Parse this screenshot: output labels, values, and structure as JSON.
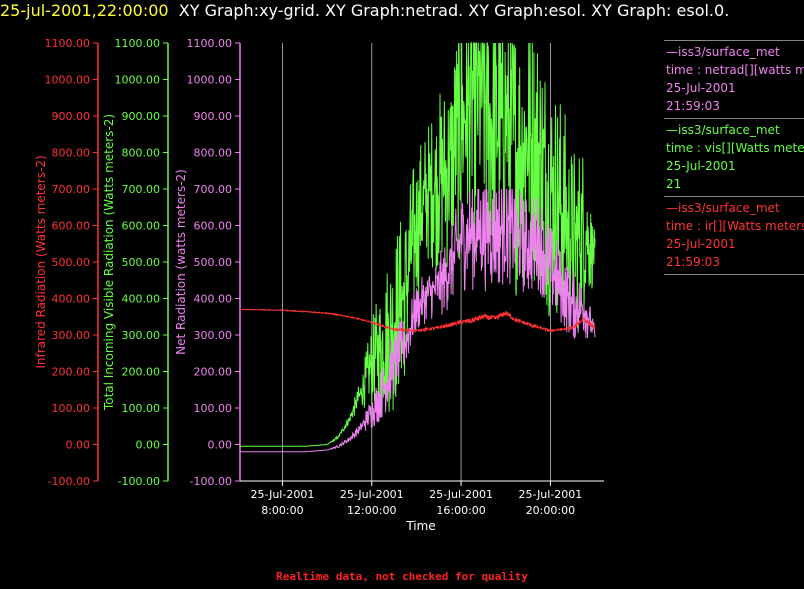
{
  "title": {
    "date": "25-jul-2001,22:00:00",
    "text": "XY Graph:xy-grid.  XY Graph:netrad.  XY Graph:esol.  XY Graph: esol.0."
  },
  "footer_note": "Realtime data, not checked for quality",
  "legend": [
    {
      "source": "—iss3/surface_met",
      "var": "time : netrad[][watts meters-2]",
      "date": "25-Jul-2001",
      "time": "21:59:03",
      "color": "#ee82ee"
    },
    {
      "source": "—iss3/surface_met",
      "var": "time : vis[][Watts meters-2]",
      "date": "25-Jul-2001",
      "time": "21",
      "color": "#66ff44"
    },
    {
      "source": "—iss3/surface_met",
      "var": "time : ir[][Watts meters-2]",
      "date": "25-Jul-2001",
      "time": "21:59:03",
      "color": "#ff3333"
    }
  ],
  "chart_data": {
    "type": "line",
    "xlabel": "Time",
    "x_ticks": [
      {
        "date": "25-Jul-2001",
        "time": "8:00:00",
        "hour": 8
      },
      {
        "date": "25-Jul-2001",
        "time": "12:00:00",
        "hour": 12
      },
      {
        "date": "25-Jul-2001",
        "time": "16:00:00",
        "hour": 16
      },
      {
        "date": "25-Jul-2001",
        "time": "20:00:00",
        "hour": 20
      }
    ],
    "xlim_hours": [
      6.1,
      22.4
    ],
    "grid": "vertical",
    "y_ticks": [
      "-100.00",
      "0.00",
      "100.00",
      "200.00",
      "300.00",
      "400.00",
      "500.00",
      "600.00",
      "700.00",
      "800.00",
      "900.00",
      "1000.00",
      "1100.00"
    ],
    "axes": [
      {
        "label": "Infrared Radiation (Watts meters-2)",
        "color": "#ff3333",
        "ylim": [
          -100,
          1100
        ]
      },
      {
        "label": "Total Incoming Visible Radiation (Watts meters-2)",
        "color": "#66ff44",
        "ylim": [
          -100,
          1100
        ]
      },
      {
        "label": "Net Radiation (watts meters-2)",
        "color": "#ee82ee",
        "ylim": [
          -100,
          1100
        ]
      }
    ],
    "series": [
      {
        "name": "vis",
        "color": "#66ff44",
        "style": "noisy",
        "x": [
          6.1,
          9.0,
          10.0,
          10.5,
          11.0,
          11.5,
          12.0,
          12.5,
          13.0,
          13.5,
          14.0,
          14.5,
          15.0,
          15.5,
          16.0,
          16.5,
          17.0,
          17.5,
          18.0,
          18.5,
          19.0,
          19.5,
          20.0,
          20.5,
          21.0,
          21.5,
          22.0
        ],
        "y": [
          -5,
          -5,
          0,
          20,
          70,
          140,
          220,
          280,
          340,
          420,
          600,
          690,
          720,
          760,
          880,
          950,
          960,
          860,
          900,
          800,
          850,
          800,
          700,
          650,
          550,
          600,
          510
        ],
        "noise": [
          0,
          0,
          0,
          5,
          15,
          40,
          120,
          200,
          260,
          250,
          220,
          200,
          250,
          300,
          380,
          420,
          450,
          430,
          420,
          400,
          400,
          380,
          360,
          320,
          280,
          250,
          60
        ],
        "min_y": -5,
        "max_y": 1100
      },
      {
        "name": "netrad",
        "color": "#ee82ee",
        "style": "noisy",
        "x": [
          6.1,
          9.0,
          10.0,
          10.5,
          11.0,
          11.5,
          12.0,
          12.5,
          13.0,
          13.5,
          14.0,
          14.5,
          15.0,
          15.5,
          16.0,
          16.5,
          17.0,
          17.5,
          18.0,
          18.5,
          19.0,
          19.5,
          20.0,
          20.5,
          21.0,
          21.5,
          22.0
        ],
        "y": [
          -20,
          -20,
          -15,
          -5,
          15,
          45,
          90,
          150,
          220,
          280,
          370,
          410,
          430,
          480,
          560,
          580,
          590,
          580,
          600,
          570,
          540,
          560,
          480,
          430,
          380,
          380,
          300
        ],
        "noise": [
          0,
          0,
          0,
          4,
          8,
          15,
          50,
          80,
          90,
          80,
          70,
          70,
          90,
          110,
          140,
          160,
          170,
          170,
          160,
          150,
          140,
          140,
          130,
          110,
          100,
          90,
          20
        ],
        "min_y": -20,
        "max_y": 700
      },
      {
        "name": "ir",
        "color": "#ff3333",
        "style": "smooth",
        "x": [
          6.1,
          8.0,
          10.0,
          11.0,
          12.0,
          13.0,
          14.0,
          15.0,
          16.0,
          16.5,
          17.0,
          17.5,
          18.0,
          18.5,
          19.0,
          19.5,
          20.0,
          20.5,
          21.0,
          21.5,
          22.0
        ],
        "y": [
          370,
          368,
          360,
          350,
          335,
          315,
          312,
          320,
          335,
          340,
          350,
          345,
          360,
          340,
          330,
          320,
          312,
          315,
          320,
          345,
          318
        ],
        "noise": [
          2,
          2,
          3,
          3,
          4,
          5,
          6,
          8,
          12,
          15,
          15,
          15,
          14,
          12,
          10,
          8,
          6,
          6,
          8,
          12,
          10
        ],
        "min_y": 295,
        "max_y": 380
      }
    ]
  }
}
